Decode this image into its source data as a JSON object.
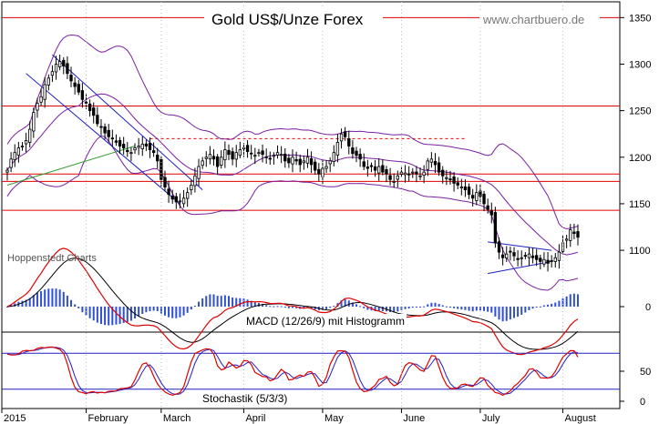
{
  "chart_data": [
    {
      "type": "candlestick",
      "panel": "price",
      "title": "Gold US$/Unze Forex",
      "watermark_url": "www.chartbuero.de",
      "source_label": "Hoppenstedt Charts",
      "ylim": [
        1060,
        1365
      ],
      "yticks": [
        {
          "value": 1350,
          "label": "1350"
        },
        {
          "value": 1300,
          "label": "1300"
        },
        {
          "value": 1250,
          "label": "1250"
        },
        {
          "value": 1200,
          "label": "1200"
        },
        {
          "value": 1150,
          "label": "1150"
        },
        {
          "value": 1100,
          "label": "1100"
        }
      ],
      "x_months": [
        {
          "label": "2015",
          "index": 0
        },
        {
          "label": "February",
          "index": 21
        },
        {
          "label": "March",
          "index": 41
        },
        {
          "label": "April",
          "index": 63
        },
        {
          "label": "May",
          "index": 84
        },
        {
          "label": "June",
          "index": 105
        },
        {
          "label": "July",
          "index": 126
        },
        {
          "label": "August",
          "index": 148
        }
      ],
      "horizontal_lines": [
        1350,
        1255,
        1182,
        1174,
        1143
      ],
      "dashed_line": {
        "value": 1220,
        "from_index": 38,
        "to_index": 122
      },
      "closes": [
        1186,
        1198,
        1205,
        1210,
        1212,
        1218,
        1230,
        1248,
        1258,
        1265,
        1278,
        1285,
        1292,
        1300,
        1303,
        1298,
        1290,
        1282,
        1276,
        1270,
        1262,
        1258,
        1250,
        1245,
        1236,
        1232,
        1226,
        1222,
        1220,
        1216,
        1212,
        1210,
        1206,
        1205,
        1210,
        1212,
        1214,
        1212,
        1208,
        1205,
        1196,
        1176,
        1168,
        1160,
        1155,
        1152,
        1153,
        1156,
        1162,
        1170,
        1180,
        1190,
        1196,
        1200,
        1203,
        1198,
        1190,
        1200,
        1208,
        1203,
        1198,
        1205,
        1208,
        1210,
        1206,
        1204,
        1202,
        1205,
        1203,
        1200,
        1198,
        1202,
        1205,
        1203,
        1196,
        1194,
        1200,
        1196,
        1192,
        1196,
        1200,
        1192,
        1186,
        1182,
        1188,
        1190,
        1196,
        1205,
        1216,
        1225,
        1222,
        1212,
        1204,
        1202,
        1198,
        1190,
        1188,
        1190,
        1186,
        1190,
        1184,
        1182,
        1176,
        1174,
        1180,
        1184,
        1183,
        1181,
        1184,
        1182,
        1180,
        1184,
        1196,
        1198,
        1192,
        1184,
        1180,
        1178,
        1176,
        1172,
        1170,
        1168,
        1165,
        1160,
        1156,
        1162,
        1158,
        1150,
        1144,
        1138,
        1108,
        1098,
        1092,
        1096,
        1098,
        1094,
        1090,
        1092,
        1094,
        1096,
        1092,
        1090,
        1088,
        1090,
        1086,
        1088,
        1092,
        1098,
        1108,
        1112,
        1122,
        1118,
        1114
      ]
    },
    {
      "type": "line",
      "panel": "macd",
      "label": "MACD (12/26/9) mit Histogramm",
      "yticks": [
        {
          "value": 0,
          "label": "0"
        }
      ]
    },
    {
      "type": "line",
      "panel": "stochastic",
      "label": "Stochastik (5/3/3)",
      "ylim": [
        0,
        100
      ],
      "yticks": [
        {
          "value": 50,
          "label": "50"
        },
        {
          "value": 0,
          "label": "0"
        }
      ],
      "horizontal_lines": [
        80,
        20
      ]
    }
  ]
}
